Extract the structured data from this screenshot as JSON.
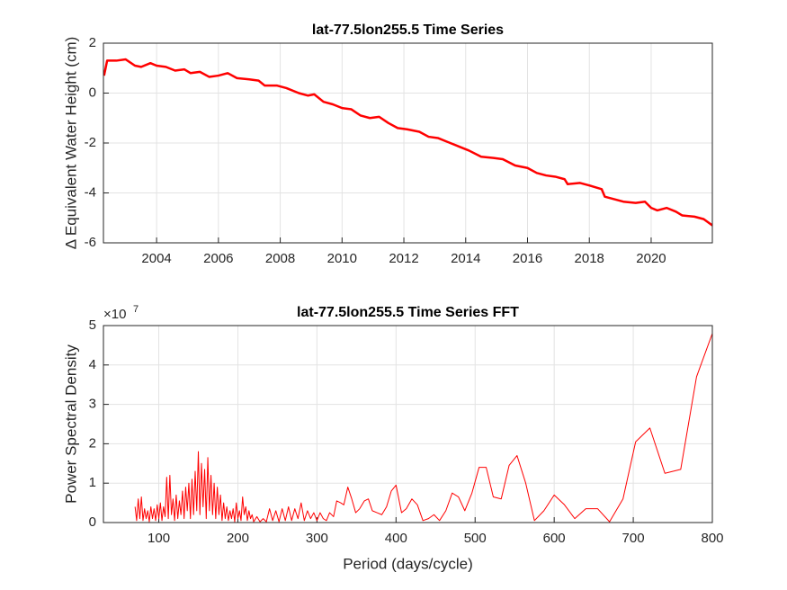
{
  "chart_data": [
    {
      "type": "line",
      "title": "lat-77.5lon255.5 Time Series",
      "y_label": "Δ  Equivalent Water Height (cm)",
      "xlim": [
        2002.28,
        2021.98
      ],
      "xticks": [
        2004,
        2006,
        2008,
        2010,
        2012,
        2014,
        2016,
        2018,
        2020
      ],
      "ylim": [
        -6,
        2
      ],
      "yticks": [
        -6,
        -4,
        -2,
        0,
        2
      ],
      "grid": true,
      "x": [
        2002.3,
        2002.4,
        2002.7,
        2003.0,
        2003.3,
        2003.5,
        2003.8,
        2004.0,
        2004.3,
        2004.6,
        2004.9,
        2005.1,
        2005.4,
        2005.7,
        2006.0,
        2006.3,
        2006.6,
        2007.0,
        2007.3,
        2007.5,
        2007.9,
        2008.2,
        2008.6,
        2008.9,
        2009.1,
        2009.4,
        2009.7,
        2010.0,
        2010.3,
        2010.6,
        2010.9,
        2011.2,
        2011.5,
        2011.8,
        2012.1,
        2012.5,
        2012.8,
        2013.1,
        2013.4,
        2013.8,
        2014.1,
        2014.5,
        2014.9,
        2015.2,
        2015.6,
        2016.0,
        2016.3,
        2016.6,
        2016.9,
        2017.2,
        2017.3,
        2017.7,
        2018.0,
        2018.4,
        2018.5,
        2018.8,
        2019.1,
        2019.5,
        2019.8,
        2020.0,
        2020.2,
        2020.5,
        2020.8,
        2021.0,
        2021.4,
        2021.7,
        2021.98
      ],
      "series": [
        {
          "color": "#ff0000",
          "line_width": 2.5,
          "values": [
            0.7,
            1.3,
            1.3,
            1.35,
            1.1,
            1.05,
            1.2,
            1.1,
            1.05,
            0.9,
            0.95,
            0.8,
            0.85,
            0.65,
            0.7,
            0.8,
            0.6,
            0.55,
            0.5,
            0.3,
            0.3,
            0.2,
            0.0,
            -0.1,
            -0.05,
            -0.35,
            -0.45,
            -0.6,
            -0.65,
            -0.9,
            -1.0,
            -0.95,
            -1.2,
            -1.4,
            -1.45,
            -1.55,
            -1.75,
            -1.8,
            -1.95,
            -2.15,
            -2.3,
            -2.55,
            -2.6,
            -2.65,
            -2.9,
            -3.0,
            -3.2,
            -3.3,
            -3.35,
            -3.45,
            -3.65,
            -3.6,
            -3.7,
            -3.85,
            -4.15,
            -4.25,
            -4.35,
            -4.4,
            -4.35,
            -4.6,
            -4.7,
            -4.6,
            -4.75,
            -4.9,
            -4.95,
            -5.05,
            -5.3
          ]
        }
      ]
    },
    {
      "type": "line",
      "title": "lat-77.5lon255.5 Time Series FFT",
      "x_label": "Period (days/cycle)",
      "y_label": "Power Spectral Density",
      "y_multiplier": {
        "base": "×10",
        "exponent": "7"
      },
      "xlim": [
        30,
        800
      ],
      "xticks": [
        100,
        200,
        300,
        400,
        500,
        600,
        700,
        800
      ],
      "ylim": [
        0,
        5
      ],
      "yticks": [
        0,
        1,
        2,
        3,
        4,
        5
      ],
      "grid": true,
      "x": [
        70,
        72,
        74,
        76,
        78,
        80,
        82,
        84,
        86,
        88,
        90,
        92,
        94,
        96,
        98,
        100,
        102,
        104,
        106,
        108,
        110,
        112,
        114,
        116,
        118,
        120,
        122,
        124,
        126,
        128,
        130,
        132,
        134,
        136,
        138,
        140,
        142,
        144,
        146,
        148,
        150,
        152,
        154,
        156,
        158,
        160,
        162,
        164,
        166,
        168,
        170,
        172,
        174,
        176,
        178,
        180,
        182,
        184,
        186,
        188,
        190,
        192,
        194,
        196,
        198,
        200,
        202,
        204,
        206,
        208,
        210,
        212,
        214,
        216,
        218,
        220,
        224,
        228,
        232,
        236,
        240,
        244,
        248,
        252,
        256,
        260,
        264,
        268,
        272,
        276,
        280,
        284,
        288,
        292,
        296,
        300,
        304,
        308,
        312,
        316,
        321,
        325,
        330,
        334,
        339,
        344,
        349,
        354,
        360,
        365,
        370,
        376,
        382,
        388,
        394,
        400,
        407,
        413,
        420,
        427,
        434,
        441,
        448,
        455,
        463,
        471,
        479,
        487,
        496,
        505,
        514,
        523,
        533,
        543,
        553,
        564,
        575,
        587,
        600,
        613,
        626,
        640,
        655,
        670,
        687,
        703,
        721,
        740,
        760,
        780,
        800
      ],
      "series": [
        {
          "color": "#ff0000",
          "line_width": 1,
          "values": [
            0.4,
            0.05,
            0.6,
            0.1,
            0.65,
            0.05,
            0.35,
            0.1,
            0.3,
            0.02,
            0.4,
            0.1,
            0.35,
            0.05,
            0.45,
            0.1,
            0.5,
            0.05,
            0.4,
            0.15,
            1.15,
            0.1,
            1.2,
            0.2,
            0.6,
            0.05,
            0.7,
            0.1,
            0.55,
            0.2,
            0.8,
            0.1,
            0.9,
            0.3,
            1.0,
            0.1,
            1.1,
            0.2,
            1.3,
            0.3,
            1.8,
            0.2,
            1.5,
            0.4,
            1.35,
            0.1,
            1.65,
            0.3,
            1.2,
            0.2,
            1.0,
            0.1,
            0.9,
            0.2,
            0.7,
            0.05,
            0.5,
            0.1,
            0.4,
            0.05,
            0.3,
            0.1,
            0.35,
            0.02,
            0.5,
            0.1,
            0.3,
            0.05,
            0.65,
            0.2,
            0.4,
            0.05,
            0.3,
            0.1,
            0.2,
            0.02,
            0.15,
            0.02,
            0.1,
            0.02,
            0.35,
            0.05,
            0.3,
            0.02,
            0.35,
            0.05,
            0.4,
            0.05,
            0.35,
            0.1,
            0.5,
            0.05,
            0.3,
            0.1,
            0.25,
            0.05,
            0.25,
            0.1,
            0.05,
            0.25,
            0.15,
            0.55,
            0.5,
            0.45,
            0.9,
            0.6,
            0.25,
            0.35,
            0.55,
            0.6,
            0.3,
            0.25,
            0.2,
            0.4,
            0.8,
            0.95,
            0.25,
            0.35,
            0.6,
            0.45,
            0.05,
            0.1,
            0.2,
            0.05,
            0.3,
            0.75,
            0.65,
            0.3,
            0.75,
            1.4,
            1.4,
            0.65,
            0.6,
            1.45,
            1.7,
            1.0,
            0.05,
            0.3,
            0.7,
            0.45,
            0.1,
            0.35,
            0.35,
            0.02,
            0.6,
            2.05,
            2.4,
            1.25,
            1.35,
            3.7,
            4.8
          ]
        }
      ]
    }
  ]
}
